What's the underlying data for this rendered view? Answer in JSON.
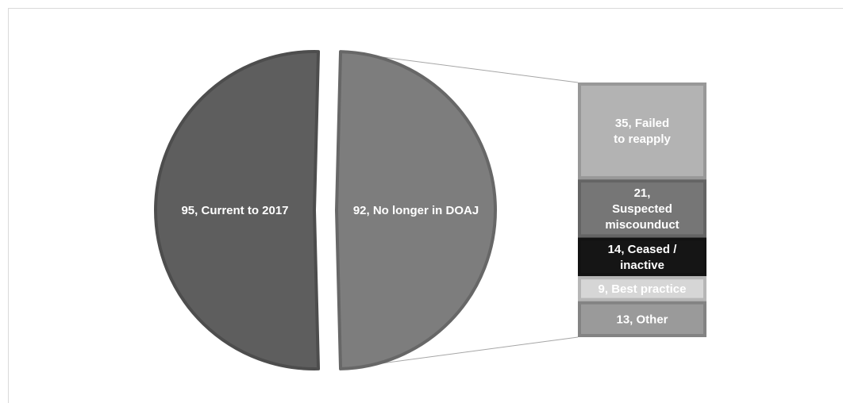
{
  "chart_data": {
    "type": "bar-of-pie",
    "title": "",
    "pie": [
      {
        "label": "95, Current to 2017",
        "value": 95,
        "color": "#5e5e5e"
      },
      {
        "label": "92, No longer in DOAJ",
        "value": 92,
        "color": "#7d7d7d"
      }
    ],
    "breakdown": [
      {
        "label": "35, Failed to reapply",
        "value": 35,
        "color": "#b3b3b3"
      },
      {
        "label": "21, Suspected miscounduct",
        "value": 21,
        "color": "#767676"
      },
      {
        "label": "14, Ceased / inactive",
        "value": 14,
        "color": "#151515"
      },
      {
        "label": "9, Best practice",
        "value": 9,
        "color": "#d6d6d6"
      },
      {
        "label": "13, Other",
        "value": 13,
        "color": "#9a9a9a"
      }
    ],
    "grid": false,
    "legend": "none"
  }
}
